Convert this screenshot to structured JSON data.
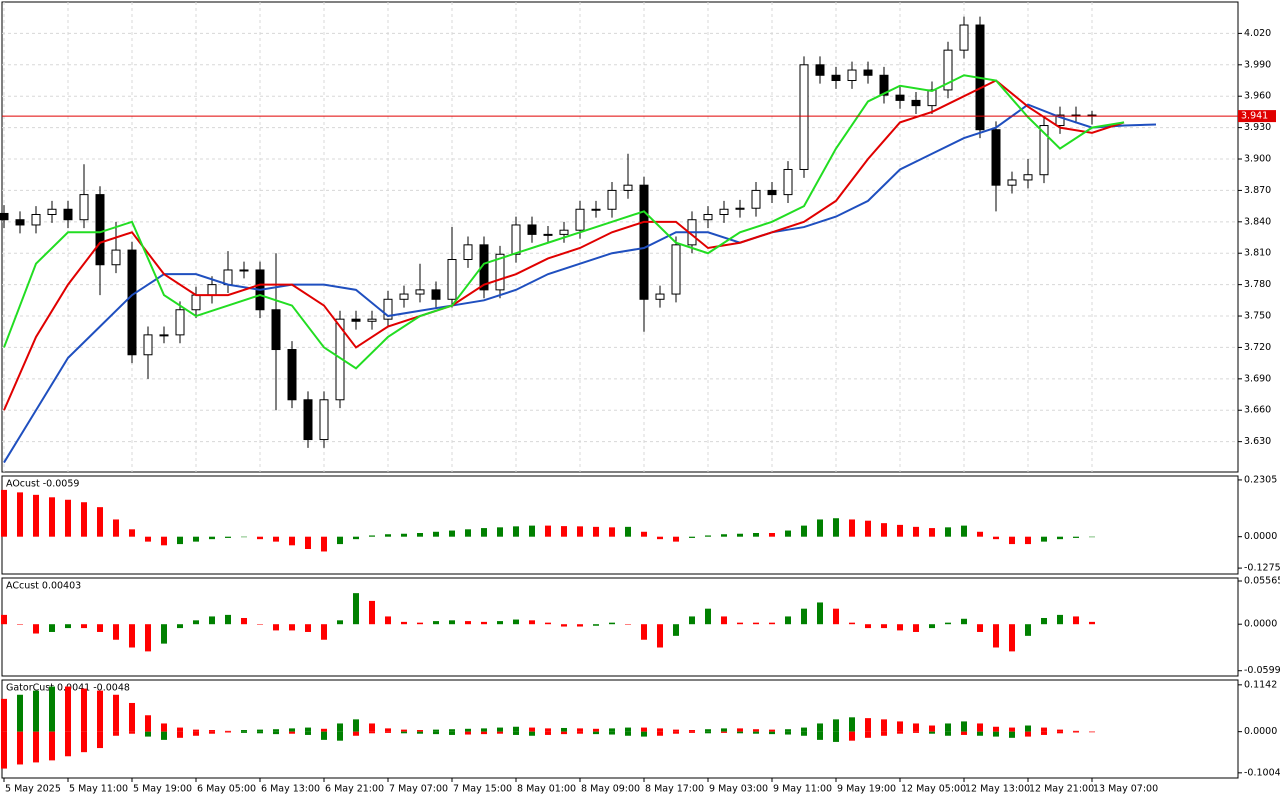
{
  "chart_data": [
    {
      "type": "candlestick",
      "open": [
        3.848,
        3.842,
        3.837,
        3.847,
        3.852,
        3.842,
        3.866,
        3.799,
        3.813,
        3.713,
        3.732,
        3.732,
        3.756,
        3.77,
        3.78,
        3.794,
        3.794,
        3.756,
        3.718,
        3.67,
        3.632,
        3.67,
        3.747,
        3.745,
        3.747,
        3.766,
        3.771,
        3.775,
        3.766,
        3.804,
        3.818,
        3.775,
        3.809,
        3.837,
        3.828,
        3.828,
        3.832,
        3.852,
        3.852,
        3.87,
        3.875,
        3.766,
        3.771,
        3.818,
        3.842,
        3.847,
        3.852,
        3.853,
        3.87,
        3.866,
        3.89,
        3.99,
        3.98,
        3.975,
        3.985,
        3.98,
        3.961,
        3.956,
        3.951,
        3.966,
        4.004,
        4.028,
        3.928,
        3.875,
        3.88,
        3.885,
        3.932,
        3.942,
        3.942
      ],
      "high": [
        3.856,
        3.85,
        3.855,
        3.86,
        3.86,
        3.895,
        3.874,
        3.84,
        3.821,
        3.74,
        3.74,
        3.764,
        3.778,
        3.788,
        3.812,
        3.802,
        3.802,
        3.81,
        3.726,
        3.678,
        3.678,
        3.755,
        3.755,
        3.755,
        3.774,
        3.779,
        3.8,
        3.783,
        3.835,
        3.826,
        3.826,
        3.817,
        3.845,
        3.845,
        3.836,
        3.84,
        3.86,
        3.86,
        3.878,
        3.905,
        3.883,
        3.779,
        3.826,
        3.85,
        3.855,
        3.86,
        3.861,
        3.878,
        3.878,
        3.898,
        3.998,
        3.998,
        3.988,
        3.993,
        3.993,
        3.988,
        3.969,
        3.964,
        3.974,
        4.012,
        4.036,
        4.036,
        3.936,
        3.888,
        3.9,
        3.94,
        3.95,
        3.95,
        3.946
      ],
      "low": [
        3.834,
        3.829,
        3.829,
        3.839,
        3.834,
        3.834,
        3.77,
        3.791,
        3.705,
        3.69,
        3.724,
        3.724,
        3.748,
        3.762,
        3.772,
        3.786,
        3.748,
        3.66,
        3.662,
        3.624,
        3.624,
        3.662,
        3.737,
        3.737,
        3.739,
        3.758,
        3.763,
        3.758,
        3.758,
        3.796,
        3.767,
        3.767,
        3.801,
        3.82,
        3.82,
        3.82,
        3.824,
        3.844,
        3.844,
        3.862,
        3.735,
        3.758,
        3.763,
        3.81,
        3.834,
        3.839,
        3.844,
        3.845,
        3.858,
        3.858,
        3.882,
        3.972,
        3.967,
        3.967,
        3.972,
        3.953,
        3.948,
        3.943,
        3.943,
        3.958,
        3.996,
        3.92,
        3.85,
        3.867,
        3.872,
        3.877,
        3.924,
        3.934,
        3.933
      ],
      "close": [
        3.842,
        3.837,
        3.847,
        3.852,
        3.842,
        3.866,
        3.799,
        3.813,
        3.713,
        3.732,
        3.732,
        3.756,
        3.77,
        3.78,
        3.794,
        3.794,
        3.756,
        3.718,
        3.67,
        3.632,
        3.67,
        3.747,
        3.745,
        3.747,
        3.766,
        3.771,
        3.775,
        3.766,
        3.804,
        3.818,
        3.775,
        3.809,
        3.837,
        3.828,
        3.828,
        3.832,
        3.852,
        3.852,
        3.87,
        3.875,
        3.766,
        3.771,
        3.818,
        3.842,
        3.847,
        3.852,
        3.853,
        3.87,
        3.866,
        3.89,
        3.99,
        3.98,
        3.975,
        3.985,
        3.98,
        3.961,
        3.956,
        3.951,
        3.966,
        4.004,
        4.028,
        3.928,
        3.875,
        3.88,
        3.885,
        3.932,
        3.942,
        3.942,
        3.941
      ],
      "line_x": [
        0,
        2,
        4,
        6,
        8,
        10,
        12,
        14,
        16,
        18,
        20,
        22,
        24,
        26,
        28,
        30,
        32,
        34,
        36,
        38,
        40,
        42,
        44,
        46,
        48,
        50,
        52,
        54,
        56,
        58,
        60,
        62,
        64,
        66,
        68,
        70,
        72
      ],
      "lines": [
        {
          "color": "#1f4fbf",
          "values": [
            3.61,
            3.66,
            3.71,
            3.74,
            3.77,
            3.79,
            3.79,
            3.78,
            3.775,
            3.78,
            3.78,
            3.775,
            3.75,
            3.755,
            3.76,
            3.765,
            3.775,
            3.79,
            3.8,
            3.81,
            3.815,
            3.83,
            3.83,
            3.82,
            3.83,
            3.835,
            3.845,
            3.86,
            3.89,
            3.905,
            3.92,
            3.93,
            3.952,
            3.94,
            3.93,
            3.932,
            3.933
          ]
        },
        {
          "color": "#e00000",
          "values": [
            3.66,
            3.73,
            3.78,
            3.82,
            3.83,
            3.79,
            3.77,
            3.77,
            3.78,
            3.78,
            3.76,
            3.72,
            3.74,
            3.75,
            3.76,
            3.78,
            3.79,
            3.805,
            3.815,
            3.83,
            3.84,
            3.84,
            3.815,
            3.82,
            3.83,
            3.84,
            3.86,
            3.9,
            3.935,
            3.945,
            3.96,
            3.975,
            3.95,
            3.93,
            3.925,
            3.935,
            null
          ]
        },
        {
          "color": "#22dd22",
          "values": [
            3.72,
            3.8,
            3.83,
            3.83,
            3.84,
            3.77,
            3.75,
            3.76,
            3.77,
            3.76,
            3.72,
            3.7,
            3.73,
            3.75,
            3.76,
            3.8,
            3.81,
            3.82,
            3.83,
            3.84,
            3.85,
            3.82,
            3.81,
            3.83,
            3.84,
            3.855,
            3.91,
            3.955,
            3.97,
            3.965,
            3.98,
            3.975,
            3.94,
            3.91,
            3.93,
            3.935,
            null
          ]
        }
      ],
      "price_line": {
        "value": 3.941,
        "label": "3.941"
      },
      "ylim": [
        3.601,
        4.05
      ],
      "yticks": [
        {
          "value": 4.02,
          "label": "4.020"
        },
        {
          "value": 3.99,
          "label": "3.990"
        },
        {
          "value": 3.96,
          "label": "3.960"
        },
        {
          "value": 3.93,
          "label": "3.930"
        },
        {
          "value": 3.9,
          "label": "3.900"
        },
        {
          "value": 3.87,
          "label": "3.870"
        },
        {
          "value": 3.84,
          "label": "3.840"
        },
        {
          "value": 3.81,
          "label": "3.810"
        },
        {
          "value": 3.78,
          "label": "3.780"
        },
        {
          "value": 3.75,
          "label": "3.750"
        },
        {
          "value": 3.72,
          "label": "3.720"
        },
        {
          "value": 3.69,
          "label": "3.690"
        },
        {
          "value": 3.66,
          "label": "3.660"
        },
        {
          "value": 3.63,
          "label": "3.630"
        }
      ],
      "xticks": [
        {
          "value": 0,
          "label": "5 May 2025"
        },
        {
          "value": 4,
          "label": "5 May 11:00"
        },
        {
          "value": 8,
          "label": "5 May 19:00"
        },
        {
          "value": 12,
          "label": "6 May 05:00"
        },
        {
          "value": 16,
          "label": "6 May 13:00"
        },
        {
          "value": 20,
          "label": "6 May 21:00"
        },
        {
          "value": 24,
          "label": "7 May 07:00"
        },
        {
          "value": 28,
          "label": "7 May 15:00"
        },
        {
          "value": 32,
          "label": "8 May 01:00"
        },
        {
          "value": 36,
          "label": "8 May 09:00"
        },
        {
          "value": 40,
          "label": "8 May 17:00"
        },
        {
          "value": 44,
          "label": "9 May 03:00"
        },
        {
          "value": 48,
          "label": "9 May 11:00"
        },
        {
          "value": 52,
          "label": "9 May 19:00"
        },
        {
          "value": 56,
          "label": "12 May 05:00"
        },
        {
          "value": 60,
          "label": "12 May 13:00"
        },
        {
          "value": 64,
          "label": "12 May 21:00"
        },
        {
          "value": 68,
          "label": "13 May 07:00"
        }
      ],
      "grid": true,
      "up_color": "#ffffff",
      "down_color": "#000000",
      "price_line_color": "#e00000"
    },
    {
      "type": "histogram",
      "title": "AOcust -0.0059",
      "values": [
        0.19,
        0.18,
        0.17,
        0.16,
        0.15,
        0.14,
        0.12,
        0.07,
        0.03,
        -0.02,
        -0.035,
        -0.03,
        -0.02,
        -0.01,
        -0.005,
        0.0,
        -0.01,
        -0.02,
        -0.035,
        -0.05,
        -0.06,
        -0.03,
        -0.01,
        0.005,
        0.01,
        0.012,
        0.015,
        0.02,
        0.025,
        0.03,
        0.035,
        0.038,
        0.042,
        0.045,
        0.045,
        0.043,
        0.042,
        0.04,
        0.038,
        0.04,
        0.02,
        -0.01,
        -0.02,
        -0.005,
        0.005,
        0.01,
        0.012,
        0.015,
        0.015,
        0.025,
        0.045,
        0.07,
        0.075,
        0.07,
        0.065,
        0.055,
        0.048,
        0.04,
        0.035,
        0.038,
        0.045,
        0.02,
        -0.01,
        -0.03,
        -0.03,
        -0.02,
        -0.01,
        -0.005,
        0.0
      ],
      "ylim": [
        -0.1515,
        0.2465
      ],
      "yticks": [
        {
          "value": 0.2305,
          "label": "0.2305"
        },
        {
          "value": 0,
          "label": "0.0000"
        },
        {
          "value": -0.1275,
          "label": "-0.1275"
        }
      ],
      "up_color": "#008000",
      "down_color": "#ff0000"
    },
    {
      "type": "histogram",
      "title": "ACcust 0.00403",
      "values": [
        0.012,
        0.0,
        -0.012,
        -0.01,
        -0.005,
        -0.005,
        -0.01,
        -0.02,
        -0.03,
        -0.035,
        -0.025,
        -0.005,
        0.005,
        0.01,
        0.012,
        0.008,
        0.0,
        -0.008,
        -0.008,
        -0.01,
        -0.02,
        0.005,
        0.04,
        0.03,
        0.01,
        0.003,
        0.002,
        0.004,
        0.005,
        0.004,
        0.003,
        0.004,
        0.006,
        0.005,
        0.002,
        -0.003,
        -0.003,
        -0.002,
        0.002,
        0.0,
        -0.02,
        -0.03,
        -0.015,
        0.01,
        0.02,
        0.01,
        0.002,
        0.002,
        0.002,
        0.01,
        0.02,
        0.028,
        0.02,
        0.002,
        -0.005,
        -0.005,
        -0.008,
        -0.01,
        -0.005,
        0.002,
        0.007,
        -0.01,
        -0.03,
        -0.035,
        -0.015,
        0.008,
        0.012,
        0.01,
        0.003
      ],
      "ylim": [
        -0.0667,
        0.0595
      ],
      "yticks": [
        {
          "value": 0.05565,
          "label": "0.05565"
        },
        {
          "value": 0,
          "label": "0.0000"
        },
        {
          "value": -0.05991,
          "label": "-0.05991"
        }
      ],
      "up_color": "#008000",
      "down_color": "#ff0000"
    },
    {
      "type": "gator",
      "title": "GatorCust 0.0041 -0.0048",
      "upper": [
        0.08,
        0.09,
        0.1,
        0.11,
        0.11,
        0.105,
        0.1,
        0.09,
        0.07,
        0.04,
        0.02,
        0.01,
        0.005,
        0.004,
        0.002,
        0.004,
        0.005,
        0.006,
        0.008,
        0.01,
        0.007,
        0.02,
        0.03,
        0.02,
        0.008,
        0.005,
        0.004,
        0.005,
        0.006,
        0.007,
        0.008,
        0.01,
        0.012,
        0.01,
        0.008,
        0.009,
        0.008,
        0.007,
        0.008,
        0.01,
        0.01,
        0.008,
        0.005,
        0.004,
        0.006,
        0.008,
        0.008,
        0.006,
        0.005,
        0.006,
        0.01,
        0.02,
        0.03,
        0.035,
        0.033,
        0.03,
        0.025,
        0.02,
        0.015,
        0.02,
        0.025,
        0.02,
        0.012,
        0.01,
        0.015,
        0.01,
        0.005,
        0.002,
        0.0
      ],
      "lower": [
        -0.09,
        -0.08,
        -0.075,
        -0.07,
        -0.06,
        -0.05,
        -0.04,
        -0.01,
        -0.005,
        -0.012,
        -0.02,
        -0.015,
        -0.01,
        -0.005,
        -0.002,
        -0.003,
        -0.004,
        -0.006,
        -0.005,
        -0.008,
        -0.02,
        -0.022,
        -0.01,
        -0.004,
        -0.003,
        -0.004,
        -0.005,
        -0.006,
        -0.008,
        -0.007,
        -0.006,
        -0.005,
        -0.008,
        -0.01,
        -0.008,
        -0.006,
        -0.005,
        -0.006,
        -0.007,
        -0.01,
        -0.012,
        -0.01,
        -0.005,
        -0.003,
        -0.004,
        -0.003,
        -0.004,
        -0.005,
        -0.006,
        -0.007,
        -0.01,
        -0.02,
        -0.025,
        -0.022,
        -0.015,
        -0.01,
        -0.005,
        -0.003,
        -0.005,
        -0.01,
        -0.008,
        -0.01,
        -0.012,
        -0.015,
        -0.012,
        -0.008,
        -0.004,
        -0.002,
        -0.001
      ],
      "ylim": [
        -0.113,
        0.126
      ],
      "yticks": [
        {
          "value": 0.1142,
          "label": "0.1142"
        },
        {
          "value": 0,
          "label": "0.0000"
        },
        {
          "value": -0.1004,
          "label": "-0.1004"
        }
      ],
      "up_color": "#008000",
      "down_color": "#ff0000"
    }
  ]
}
